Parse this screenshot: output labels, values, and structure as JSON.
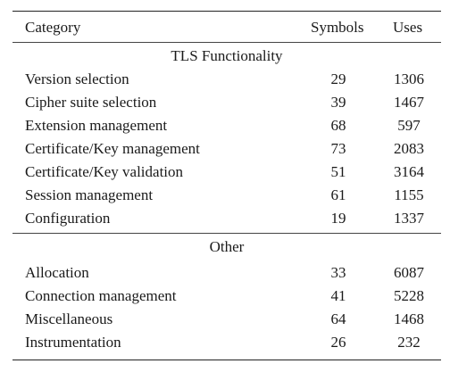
{
  "table": {
    "headers": {
      "category": "Category",
      "symbols": "Symbols",
      "uses": "Uses"
    },
    "sections": [
      {
        "title": "TLS Functionality",
        "rows": [
          {
            "category": "Version selection",
            "symbols": "29",
            "uses": "1306"
          },
          {
            "category": "Cipher suite selection",
            "symbols": "39",
            "uses": "1467"
          },
          {
            "category": "Extension management",
            "symbols": "68",
            "uses": "597"
          },
          {
            "category": "Certificate/Key management",
            "symbols": "73",
            "uses": "2083"
          },
          {
            "category": "Certificate/Key validation",
            "symbols": "51",
            "uses": "3164"
          },
          {
            "category": "Session management",
            "symbols": "61",
            "uses": "1155"
          },
          {
            "category": "Configuration",
            "symbols": "19",
            "uses": "1337"
          }
        ]
      },
      {
        "title": "Other",
        "rows": [
          {
            "category": "Allocation",
            "symbols": "33",
            "uses": "6087"
          },
          {
            "category": "Connection management",
            "symbols": "41",
            "uses": "5228"
          },
          {
            "category": "Miscellaneous",
            "symbols": "64",
            "uses": "1468"
          },
          {
            "category": "Instrumentation",
            "symbols": "26",
            "uses": "232"
          }
        ]
      }
    ]
  }
}
